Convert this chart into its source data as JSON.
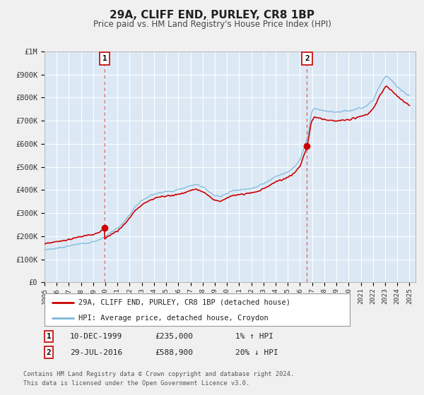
{
  "title": "29A, CLIFF END, PURLEY, CR8 1BP",
  "subtitle": "Price paid vs. HM Land Registry's House Price Index (HPI)",
  "ylim": [
    0,
    1000000
  ],
  "xlim_start": 1995.0,
  "xlim_end": 2025.5,
  "fig_bg_color": "#f0f0f0",
  "plot_bg_color": "#dce9f5",
  "grid_color": "#ffffff",
  "hpi_color": "#7ab8d9",
  "price_color": "#cc0000",
  "marker_color": "#cc0000",
  "dashed_line_color": "#e06060",
  "annotation1_year": 1999.95,
  "annotation1_price": 235000,
  "annotation2_year": 2016.58,
  "annotation2_price": 588900,
  "legend_label1": "29A, CLIFF END, PURLEY, CR8 1BP (detached house)",
  "legend_label2": "HPI: Average price, detached house, Croydon",
  "table_row1": [
    "1",
    "10-DEC-1999",
    "£235,000",
    "1% ↑ HPI"
  ],
  "table_row2": [
    "2",
    "29-JUL-2016",
    "£588,900",
    "20% ↓ HPI"
  ],
  "footer1": "Contains HM Land Registry data © Crown copyright and database right 2024.",
  "footer2": "This data is licensed under the Open Government Licence v3.0.",
  "ytick_labels": [
    "£0",
    "£100K",
    "£200K",
    "£300K",
    "£400K",
    "£500K",
    "£600K",
    "£700K",
    "£800K",
    "£900K",
    "£1M"
  ],
  "ytick_values": [
    0,
    100000,
    200000,
    300000,
    400000,
    500000,
    600000,
    700000,
    800000,
    900000,
    1000000
  ],
  "xtick_years": [
    1995,
    1996,
    1997,
    1998,
    1999,
    2000,
    2001,
    2002,
    2003,
    2004,
    2005,
    2006,
    2007,
    2008,
    2009,
    2010,
    2011,
    2012,
    2013,
    2014,
    2015,
    2016,
    2017,
    2018,
    2019,
    2020,
    2021,
    2022,
    2023,
    2024,
    2025
  ],
  "hpi_anchors": [
    [
      1995.0,
      142000
    ],
    [
      1995.5,
      145000
    ],
    [
      1996.0,
      148000
    ],
    [
      1996.5,
      152000
    ],
    [
      1997.0,
      157000
    ],
    [
      1997.5,
      163000
    ],
    [
      1998.0,
      168000
    ],
    [
      1998.5,
      172000
    ],
    [
      1999.0,
      175000
    ],
    [
      1999.5,
      185000
    ],
    [
      2000.0,
      200000
    ],
    [
      2000.5,
      218000
    ],
    [
      2001.0,
      235000
    ],
    [
      2001.5,
      258000
    ],
    [
      2002.0,
      295000
    ],
    [
      2002.5,
      330000
    ],
    [
      2003.0,
      355000
    ],
    [
      2003.5,
      370000
    ],
    [
      2004.0,
      382000
    ],
    [
      2004.5,
      390000
    ],
    [
      2005.0,
      393000
    ],
    [
      2005.5,
      396000
    ],
    [
      2006.0,
      402000
    ],
    [
      2006.5,
      410000
    ],
    [
      2007.0,
      418000
    ],
    [
      2007.5,
      425000
    ],
    [
      2008.0,
      415000
    ],
    [
      2008.5,
      395000
    ],
    [
      2009.0,
      375000
    ],
    [
      2009.5,
      370000
    ],
    [
      2010.0,
      385000
    ],
    [
      2010.5,
      398000
    ],
    [
      2011.0,
      400000
    ],
    [
      2011.5,
      403000
    ],
    [
      2012.0,
      408000
    ],
    [
      2012.5,
      415000
    ],
    [
      2013.0,
      428000
    ],
    [
      2013.5,
      442000
    ],
    [
      2014.0,
      458000
    ],
    [
      2014.5,
      468000
    ],
    [
      2015.0,
      478000
    ],
    [
      2015.5,
      498000
    ],
    [
      2016.0,
      530000
    ],
    [
      2016.3,
      575000
    ],
    [
      2016.58,
      620000
    ],
    [
      2016.7,
      650000
    ],
    [
      2016.9,
      720000
    ],
    [
      2017.0,
      740000
    ],
    [
      2017.2,
      755000
    ],
    [
      2017.5,
      748000
    ],
    [
      2018.0,
      742000
    ],
    [
      2018.5,
      738000
    ],
    [
      2019.0,
      735000
    ],
    [
      2019.5,
      740000
    ],
    [
      2020.0,
      742000
    ],
    [
      2020.5,
      748000
    ],
    [
      2021.0,
      755000
    ],
    [
      2021.5,
      765000
    ],
    [
      2022.0,
      790000
    ],
    [
      2022.3,
      820000
    ],
    [
      2022.6,
      855000
    ],
    [
      2022.9,
      880000
    ],
    [
      2023.1,
      895000
    ],
    [
      2023.3,
      885000
    ],
    [
      2023.5,
      875000
    ],
    [
      2023.8,
      860000
    ],
    [
      2024.0,
      848000
    ],
    [
      2024.3,
      835000
    ],
    [
      2024.6,
      820000
    ],
    [
      2024.9,
      810000
    ],
    [
      2025.0,
      808000
    ]
  ]
}
